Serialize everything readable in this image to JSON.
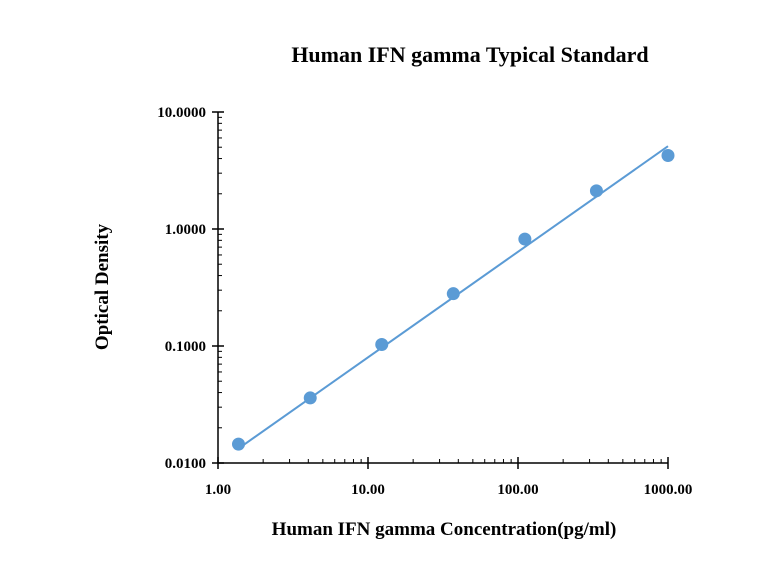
{
  "chart_data": {
    "type": "scatter",
    "title": "Human IFN gamma Typical Standard",
    "xlabel": "Human IFN gamma Concentration(pg/ml)",
    "ylabel": "Optical Density",
    "x_scale": "log",
    "y_scale": "log",
    "xlim": [
      1,
      1000
    ],
    "ylim": [
      0.01,
      10
    ],
    "x_ticks": [
      {
        "value": 1,
        "label": "1.00"
      },
      {
        "value": 10,
        "label": "10.00"
      },
      {
        "value": 100,
        "label": "100.00"
      },
      {
        "value": 1000,
        "label": "1000.00"
      }
    ],
    "y_ticks": [
      {
        "value": 0.01,
        "label": "0.0100"
      },
      {
        "value": 0.1,
        "label": "0.1000"
      },
      {
        "value": 1,
        "label": "1.0000"
      },
      {
        "value": 10,
        "label": "10.0000"
      }
    ],
    "grid": false,
    "legend": "none",
    "series": [
      {
        "x": [
          1.37,
          4.12,
          12.35,
          37.04,
          111.11,
          333.33,
          1000
        ],
        "y": [
          0.0145,
          0.036,
          0.103,
          0.28,
          0.82,
          2.12,
          4.25
        ]
      }
    ],
    "trendline": {
      "x": [
        1.37,
        1000
      ],
      "y": [
        0.0133,
        5.1
      ]
    },
    "colors": {
      "marker": "#5b9bd5",
      "line": "#5b9bd5",
      "axis": "#000000"
    }
  }
}
